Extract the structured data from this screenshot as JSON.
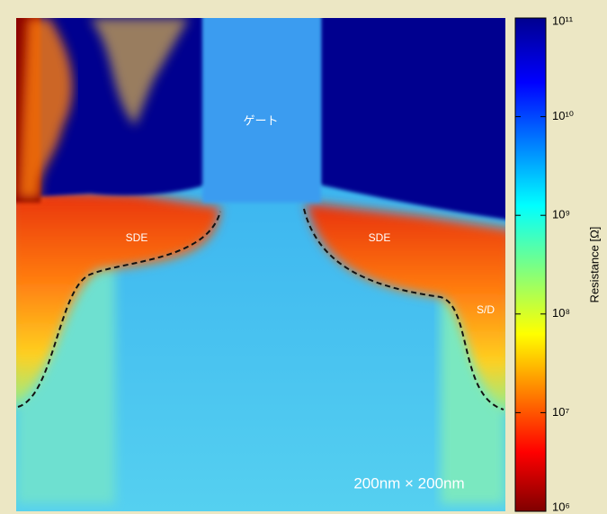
{
  "image": {
    "annotations": {
      "gate": "ゲート",
      "sde_left": "SDE",
      "sde_right": "SDE",
      "sd": "S/D",
      "scale": "200nm × 200nm"
    },
    "colorbar": {
      "label": "Resistance [Ω]",
      "scale": "log",
      "lim": [
        1000000,
        100000000000
      ],
      "ticks": [
        {
          "value": 1000000,
          "label": "10⁶"
        },
        {
          "value": 10000000,
          "label": "10⁷"
        },
        {
          "value": 100000000,
          "label": "10⁸"
        },
        {
          "value": 1000000000,
          "label": "10⁹"
        },
        {
          "value": 10000000000,
          "label": "10¹⁰"
        },
        {
          "value": 100000000000,
          "label": "10¹¹"
        }
      ]
    }
  }
}
